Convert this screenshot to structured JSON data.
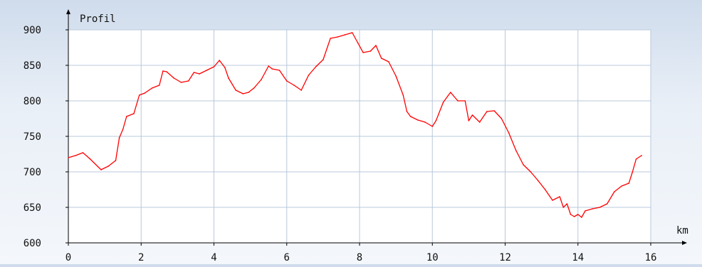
{
  "chart_data": {
    "type": "line",
    "title": "Profil",
    "xlabel": "km",
    "ylabel": "",
    "xlim": [
      0,
      16
    ],
    "ylim": [
      600,
      900
    ],
    "x_ticks": [
      0,
      2,
      4,
      6,
      8,
      10,
      12,
      14,
      16
    ],
    "y_ticks": [
      600,
      650,
      700,
      750,
      800,
      850,
      900
    ],
    "grid": true,
    "line_color": "#ff0000",
    "grid_color": "#b8c8dc",
    "series": [
      {
        "x": [
          0,
          0.2,
          0.4,
          0.6,
          0.9,
          1.1,
          1.3,
          1.4,
          1.5,
          1.6,
          1.8,
          1.95,
          2.1,
          2.3,
          2.5,
          2.6,
          2.7,
          2.9,
          3.1,
          3.3,
          3.45,
          3.6,
          3.8,
          4.0,
          4.15,
          4.3,
          4.4,
          4.6,
          4.8,
          4.95,
          5.1,
          5.3,
          5.5,
          5.6,
          5.8,
          6.0,
          6.2,
          6.4,
          6.6,
          6.8,
          7.0,
          7.2,
          7.4,
          7.6,
          7.8,
          7.95,
          8.1,
          8.3,
          8.45,
          8.6,
          8.8,
          9.0,
          9.2,
          9.3,
          9.4,
          9.6,
          9.8,
          10.0,
          10.1,
          10.3,
          10.5,
          10.7,
          10.9,
          11.0,
          11.1,
          11.3,
          11.5,
          11.7,
          11.9,
          12.1,
          12.3,
          12.5,
          12.7,
          12.9,
          13.1,
          13.3,
          13.5,
          13.6,
          13.7,
          13.8,
          13.9,
          14.0,
          14.1,
          14.2,
          14.4,
          14.6,
          14.8,
          15.0,
          15.2,
          15.4,
          15.5,
          15.6,
          15.75
        ],
        "y": [
          720,
          723,
          727,
          718,
          703,
          708,
          716,
          748,
          760,
          778,
          782,
          808,
          811,
          818,
          822,
          842,
          841,
          832,
          826,
          828,
          840,
          838,
          843,
          848,
          857,
          847,
          832,
          815,
          810,
          812,
          818,
          830,
          849,
          845,
          843,
          828,
          822,
          815,
          836,
          848,
          858,
          888,
          890,
          893,
          896,
          882,
          868,
          870,
          878,
          860,
          855,
          835,
          808,
          785,
          778,
          773,
          770,
          764,
          772,
          798,
          812,
          800,
          800,
          772,
          780,
          770,
          785,
          786,
          775,
          755,
          730,
          710,
          700,
          688,
          675,
          660,
          665,
          650,
          655,
          640,
          637,
          640,
          636,
          645,
          648,
          650,
          655,
          672,
          680,
          684,
          700,
          718,
          723
        ]
      }
    ]
  }
}
